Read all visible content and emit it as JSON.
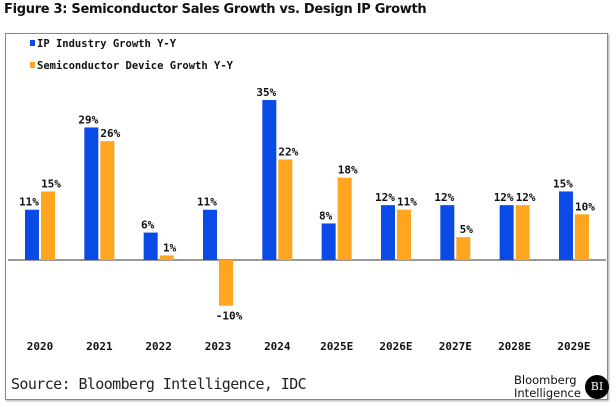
{
  "chart_data": {
    "type": "bar",
    "title": "Figure 3: Semiconductor Sales Growth vs. Design IP Growth",
    "categories": [
      "2020",
      "2021",
      "2022",
      "2023",
      "2024",
      "2025E",
      "2026E",
      "2027E",
      "2028E",
      "2029E"
    ],
    "series": [
      {
        "name": "IP Industry Growth Y-Y",
        "color": "#0a4ae6",
        "values": [
          11,
          29,
          6,
          11,
          35,
          8,
          12,
          12,
          12,
          15
        ]
      },
      {
        "name": "Semiconductor Device Growth Y-Y",
        "color": "#ffa51f",
        "values": [
          15,
          26,
          1,
          -10,
          22,
          18,
          11,
          5,
          12,
          10
        ]
      }
    ],
    "value_format": "percent",
    "data_labels": true,
    "grid": false,
    "legend": "top-left",
    "source": "Source: Bloomberg Intelligence, IDC"
  },
  "logo": {
    "text": "Bloomberg Intelligence",
    "badge": "BI"
  }
}
